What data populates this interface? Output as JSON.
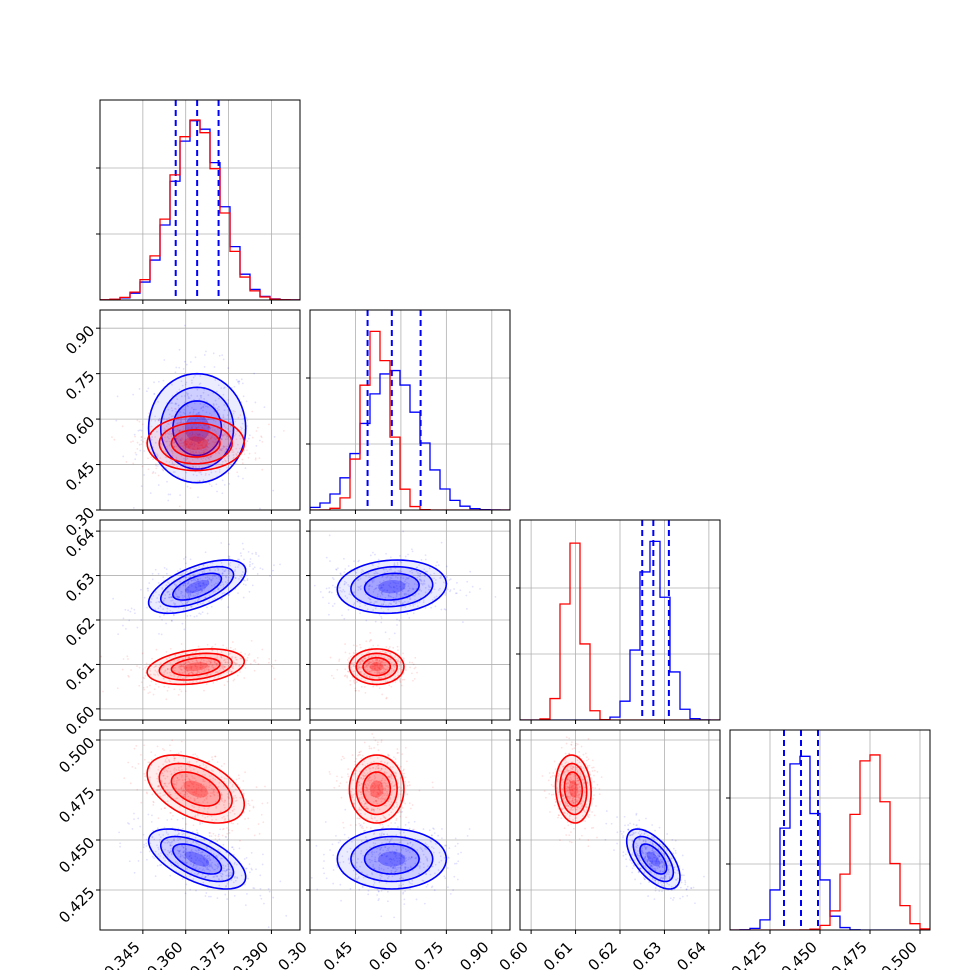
{
  "chart_data": {
    "type": "corner",
    "grid": true,
    "colors": {
      "series_a": "#0000ff",
      "series_b": "#ff0000"
    },
    "parameters": [
      {
        "index": 0,
        "range": [
          0.33,
          0.4
        ],
        "ticks": [
          0.345,
          0.36,
          0.375,
          0.39
        ],
        "tick_labels": [
          "0.345",
          "0.360",
          "0.375",
          "0.390"
        ]
      },
      {
        "index": 1,
        "range": [
          0.3,
          0.96
        ],
        "ticks": [
          0.3,
          0.45,
          0.6,
          0.75,
          0.9
        ],
        "tick_labels": [
          "0.30",
          "0.45",
          "0.60",
          "0.75",
          "0.90"
        ]
      },
      {
        "index": 2,
        "range": [
          0.5975,
          0.6425
        ],
        "ticks": [
          0.6,
          0.61,
          0.62,
          0.63,
          0.64
        ],
        "tick_labels": [
          "0.60",
          "0.61",
          "0.62",
          "0.63",
          "0.64"
        ]
      },
      {
        "index": 3,
        "range": [
          0.405,
          0.505
        ],
        "ticks": [
          0.425,
          0.45,
          0.475,
          0.5
        ],
        "tick_labels": [
          "0.425",
          "0.450",
          "0.475",
          "0.500"
        ]
      }
    ],
    "series": [
      {
        "color": "#0000ff",
        "means": [
          0.364,
          0.57,
          0.6275,
          0.4405
        ],
        "sigmas": [
          0.0085,
          0.09,
          0.003,
          0.0075
        ],
        "correlations": {
          "1-0": 0.0,
          "2-0": 0.6,
          "2-1": 0.1,
          "3-0": -0.6,
          "3-1": 0.0,
          "3-2": -0.6
        },
        "quantiles": [
          [
            0.3565,
            0.364,
            0.3715
          ],
          [
            0.49,
            0.57,
            0.665
          ],
          [
            0.625,
            0.6275,
            0.631
          ],
          [
            0.432,
            0.4405,
            0.449
          ]
        ],
        "hist_peaks": [
          1.0,
          0.78,
          1.0,
          1.0
        ]
      },
      {
        "color": "#ff0000",
        "means": [
          0.3635,
          0.52,
          0.6095,
          0.4755
        ],
        "sigmas": [
          0.0085,
          0.045,
          0.002,
          0.0085
        ],
        "correlations": {
          "1-0": 0.0,
          "2-0": 0.3,
          "2-1": 0.0,
          "3-0": -0.45,
          "3-1": 0.0,
          "3-2": -0.1
        },
        "hist_peaks": [
          1.0,
          1.0,
          1.0,
          1.0
        ]
      }
    ]
  }
}
